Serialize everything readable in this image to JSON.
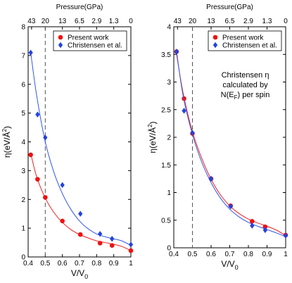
{
  "colors": {
    "red": "#ee1111",
    "blue": "#2244dd",
    "blueLine": "#3355ee",
    "redLine": "#ee2222"
  },
  "chart_data": [
    {
      "type": "scatter",
      "top_axis_label": "Pressure(GPa)",
      "top_ticks": [
        {
          "x": 0.42,
          "label": "43"
        },
        {
          "x": 0.5,
          "label": "20"
        },
        {
          "x": 0.6,
          "label": "13"
        },
        {
          "x": 0.7,
          "label": "6.5"
        },
        {
          "x": 0.8,
          "label": "2.9"
        },
        {
          "x": 0.9,
          "label": "1.3"
        },
        {
          "x": 1.0,
          "label": "0"
        }
      ],
      "xlabel_main": "V/V",
      "xlabel_sub": "0",
      "ylabel_pre": "η(eV/Å",
      "ylabel_sup": "2",
      "ylabel_post": ")",
      "xlim": [
        0.4,
        1.0
      ],
      "ylim": [
        0,
        8
      ],
      "xticks": [
        0.4,
        0.5,
        0.6,
        0.7,
        0.8,
        0.9,
        1.0
      ],
      "xticklabels": [
        "0.4",
        "0.5",
        "0.6",
        "0.7",
        "0.8",
        "0.9",
        "1"
      ],
      "yticks": [
        0,
        1,
        2,
        3,
        4,
        5,
        6,
        7,
        8
      ],
      "yticklabels": [
        "0",
        "1",
        "2",
        "3",
        "4",
        "5",
        "6",
        "7",
        "8"
      ],
      "dashed_x": 0.5,
      "legend_position": "top-right",
      "series": [
        {
          "name": "Present work",
          "marker": "circle",
          "color": "#ee1111",
          "points": [
            [
              0.415,
              3.55
            ],
            [
              0.455,
              2.7
            ],
            [
              0.5,
              2.07
            ],
            [
              0.6,
              1.25
            ],
            [
              0.705,
              0.78
            ],
            [
              0.82,
              0.48
            ],
            [
              0.89,
              0.4
            ],
            [
              1.0,
              0.22
            ]
          ],
          "curve": [
            [
              0.415,
              3.6
            ],
            [
              0.45,
              2.78
            ],
            [
              0.5,
              2.05
            ],
            [
              0.55,
              1.55
            ],
            [
              0.6,
              1.2
            ],
            [
              0.65,
              0.95
            ],
            [
              0.7,
              0.78
            ],
            [
              0.75,
              0.66
            ],
            [
              0.8,
              0.56
            ],
            [
              0.85,
              0.5
            ],
            [
              0.9,
              0.44
            ],
            [
              0.95,
              0.36
            ],
            [
              1.0,
              0.22
            ]
          ]
        },
        {
          "name": "Christensen et al.",
          "marker": "diamond",
          "color": "#2244dd",
          "points": [
            [
              0.415,
              7.1
            ],
            [
              0.455,
              4.95
            ],
            [
              0.5,
              4.15
            ],
            [
              0.6,
              2.5
            ],
            [
              0.705,
              1.5
            ],
            [
              0.82,
              0.8
            ],
            [
              0.89,
              0.63
            ],
            [
              1.0,
              0.43
            ]
          ],
          "curve": [
            [
              0.415,
              7.1
            ],
            [
              0.45,
              5.6
            ],
            [
              0.5,
              4.0
            ],
            [
              0.55,
              2.95
            ],
            [
              0.6,
              2.2
            ],
            [
              0.65,
              1.65
            ],
            [
              0.7,
              1.25
            ],
            [
              0.75,
              0.98
            ],
            [
              0.8,
              0.8
            ],
            [
              0.85,
              0.7
            ],
            [
              0.9,
              0.63
            ],
            [
              0.95,
              0.55
            ],
            [
              1.0,
              0.4
            ]
          ]
        }
      ]
    },
    {
      "type": "scatter",
      "top_axis_label": "Pressure(GPa)",
      "top_ticks": [
        {
          "x": 0.42,
          "label": "43"
        },
        {
          "x": 0.5,
          "label": "20"
        },
        {
          "x": 0.6,
          "label": "13"
        },
        {
          "x": 0.7,
          "label": "6.5"
        },
        {
          "x": 0.8,
          "label": "2.9"
        },
        {
          "x": 0.9,
          "label": "1.3"
        },
        {
          "x": 1.0,
          "label": "0"
        }
      ],
      "xlabel_main": "V/V",
      "xlabel_sub": "0",
      "ylabel_pre": "η(eV/Å",
      "ylabel_sup": "2",
      "ylabel_post": ")",
      "xlim": [
        0.4,
        1.0
      ],
      "ylim": [
        0,
        4
      ],
      "xticks": [
        0.4,
        0.5,
        0.6,
        0.7,
        0.8,
        0.9,
        1.0
      ],
      "xticklabels": [
        "0.4",
        "0.5",
        "0.6",
        "0.7",
        "0.8",
        "0.9",
        "1"
      ],
      "yticks": [
        0,
        0.5,
        1,
        1.5,
        2,
        2.5,
        3,
        3.5,
        4
      ],
      "yticklabels": [
        "0",
        "0.5",
        "1",
        "1.5",
        "2",
        "2.5",
        "3",
        "3.5",
        "4"
      ],
      "dashed_x": 0.5,
      "legend_position": "top-right",
      "annotation": {
        "line1": "Christensen η",
        "line2": "calculated by",
        "line3_pre": "N(E",
        "line3_sub": "F",
        "line3_post": ") per spin"
      },
      "series": [
        {
          "name": "Present work",
          "marker": "circle",
          "color": "#ee1111",
          "points": [
            [
              0.415,
              3.55
            ],
            [
              0.455,
              2.7
            ],
            [
              0.5,
              2.07
            ],
            [
              0.6,
              1.25
            ],
            [
              0.705,
              0.76
            ],
            [
              0.82,
              0.48
            ],
            [
              0.89,
              0.38
            ],
            [
              1.0,
              0.23
            ]
          ],
          "curve": [
            [
              0.415,
              3.5
            ],
            [
              0.45,
              2.8
            ],
            [
              0.5,
              2.1
            ],
            [
              0.55,
              1.62
            ],
            [
              0.6,
              1.24
            ],
            [
              0.65,
              0.96
            ],
            [
              0.7,
              0.76
            ],
            [
              0.75,
              0.62
            ],
            [
              0.8,
              0.52
            ],
            [
              0.85,
              0.45
            ],
            [
              0.9,
              0.39
            ],
            [
              0.95,
              0.32
            ],
            [
              1.0,
              0.22
            ]
          ]
        },
        {
          "name": "Christensen et al.",
          "marker": "diamond",
          "color": "#2244dd",
          "points": [
            [
              0.415,
              3.55
            ],
            [
              0.455,
              2.48
            ],
            [
              0.5,
              2.08
            ],
            [
              0.6,
              1.25
            ],
            [
              0.705,
              0.75
            ],
            [
              0.82,
              0.4
            ],
            [
              0.89,
              0.32
            ],
            [
              1.0,
              0.22
            ]
          ],
          "curve": [
            [
              0.415,
              3.55
            ],
            [
              0.45,
              2.75
            ],
            [
              0.5,
              2.05
            ],
            [
              0.55,
              1.55
            ],
            [
              0.6,
              1.18
            ],
            [
              0.65,
              0.9
            ],
            [
              0.7,
              0.7
            ],
            [
              0.75,
              0.56
            ],
            [
              0.8,
              0.46
            ],
            [
              0.85,
              0.39
            ],
            [
              0.9,
              0.33
            ],
            [
              0.95,
              0.27
            ],
            [
              1.0,
              0.2
            ]
          ]
        }
      ]
    }
  ]
}
